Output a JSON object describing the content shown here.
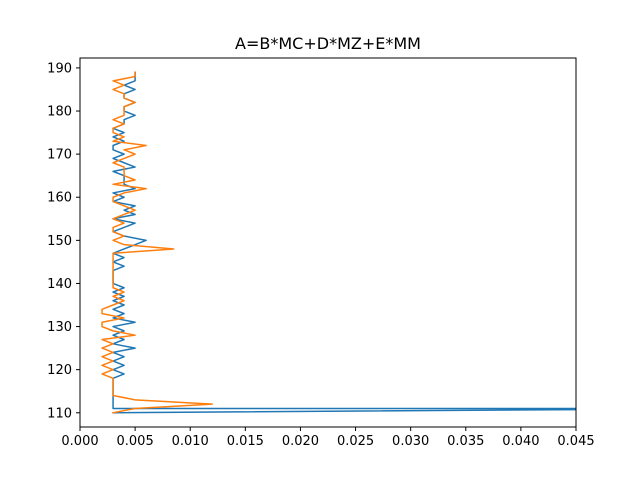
{
  "chart_data": {
    "type": "line",
    "title": "A=B*MC+D*MZ+E*MM",
    "xlabel": "",
    "ylabel": "",
    "xlim": [
      0,
      0.045
    ],
    "ylim": [
      106.7,
      192.3
    ],
    "grid": false,
    "legend": "none",
    "xticks": [
      0.0,
      0.005,
      0.01,
      0.015,
      0.02,
      0.025,
      0.03,
      0.035,
      0.04,
      0.045
    ],
    "xtick_labels": [
      "0.000",
      "0.005",
      "0.010",
      "0.015",
      "0.020",
      "0.025",
      "0.030",
      "0.035",
      "0.040",
      "0.045"
    ],
    "yticks": [
      110,
      120,
      130,
      140,
      150,
      160,
      170,
      180,
      190
    ],
    "ytick_labels": [
      "110",
      "120",
      "130",
      "140",
      "150",
      "160",
      "170",
      "180",
      "190"
    ],
    "series": [
      {
        "color": "#1f77b4",
        "points": [
          [
            0.003,
            110
          ],
          [
            0.06,
            111
          ],
          [
            0.003,
            111
          ],
          [
            0.003,
            118
          ],
          [
            0.004,
            119
          ],
          [
            0.003,
            120
          ],
          [
            0.004,
            121
          ],
          [
            0.003,
            122
          ],
          [
            0.004,
            123
          ],
          [
            0.003,
            124
          ],
          [
            0.005,
            125
          ],
          [
            0.003,
            126
          ],
          [
            0.004,
            127
          ],
          [
            0.003,
            128
          ],
          [
            0.004,
            129
          ],
          [
            0.003,
            130
          ],
          [
            0.005,
            131
          ],
          [
            0.003,
            132
          ],
          [
            0.004,
            133
          ],
          [
            0.003,
            134
          ],
          [
            0.004,
            135
          ],
          [
            0.003,
            136
          ],
          [
            0.004,
            137
          ],
          [
            0.003,
            138
          ],
          [
            0.004,
            139
          ],
          [
            0.003,
            140
          ],
          [
            0.003,
            141
          ],
          [
            0.003,
            142
          ],
          [
            0.003,
            143
          ],
          [
            0.004,
            144
          ],
          [
            0.003,
            145
          ],
          [
            0.004,
            146
          ],
          [
            0.003,
            147
          ],
          [
            0.004,
            148
          ],
          [
            0.005,
            149
          ],
          [
            0.006,
            150
          ],
          [
            0.004,
            151
          ],
          [
            0.003,
            152
          ],
          [
            0.004,
            153
          ],
          [
            0.005,
            154
          ],
          [
            0.003,
            155
          ],
          [
            0.005,
            156
          ],
          [
            0.004,
            157
          ],
          [
            0.005,
            158
          ],
          [
            0.003,
            159
          ],
          [
            0.004,
            160
          ],
          [
            0.003,
            161
          ],
          [
            0.005,
            162
          ],
          [
            0.004,
            163
          ],
          [
            0.004,
            164
          ],
          [
            0.004,
            165
          ],
          [
            0.003,
            166
          ],
          [
            0.005,
            167
          ],
          [
            0.004,
            168
          ],
          [
            0.003,
            169
          ],
          [
            0.004,
            170
          ],
          [
            0.003,
            171
          ],
          [
            0.003,
            172
          ],
          [
            0.004,
            173
          ],
          [
            0.003,
            174
          ],
          [
            0.004,
            175
          ],
          [
            0.003,
            176
          ],
          [
            0.004,
            177
          ],
          [
            0.004,
            178
          ],
          [
            0.005,
            179
          ],
          [
            0.004,
            180
          ],
          [
            0.004,
            181
          ],
          [
            0.005,
            182
          ],
          [
            0.004,
            183
          ],
          [
            0.004,
            184
          ],
          [
            0.005,
            185
          ],
          [
            0.004,
            186
          ],
          [
            0.005,
            187
          ],
          [
            0.005,
            188
          ],
          [
            0.005,
            189
          ]
        ]
      },
      {
        "color": "#ff7f0e",
        "points": [
          [
            0.003,
            110
          ],
          [
            0.005,
            111
          ],
          [
            0.012,
            112
          ],
          [
            0.005,
            113
          ],
          [
            0.003,
            114
          ],
          [
            0.003,
            118
          ],
          [
            0.002,
            119
          ],
          [
            0.003,
            120
          ],
          [
            0.002,
            121
          ],
          [
            0.003,
            122
          ],
          [
            0.002,
            123
          ],
          [
            0.003,
            124
          ],
          [
            0.002,
            125
          ],
          [
            0.003,
            126
          ],
          [
            0.002,
            127
          ],
          [
            0.005,
            128
          ],
          [
            0.003,
            129
          ],
          [
            0.002,
            130
          ],
          [
            0.002,
            131
          ],
          [
            0.004,
            132
          ],
          [
            0.002,
            133
          ],
          [
            0.002,
            134
          ],
          [
            0.003,
            135
          ],
          [
            0.004,
            136
          ],
          [
            0.003,
            137
          ],
          [
            0.004,
            138
          ],
          [
            0.003,
            139
          ],
          [
            0.003,
            140
          ],
          [
            0.003,
            141
          ],
          [
            0.003,
            142
          ],
          [
            0.003,
            143
          ],
          [
            0.003,
            144
          ],
          [
            0.003,
            145
          ],
          [
            0.003,
            146
          ],
          [
            0.003,
            147
          ],
          [
            0.0085,
            148
          ],
          [
            0.004,
            149
          ],
          [
            0.003,
            150
          ],
          [
            0.004,
            151
          ],
          [
            0.003,
            152
          ],
          [
            0.003,
            153
          ],
          [
            0.004,
            154
          ],
          [
            0.003,
            155
          ],
          [
            0.004,
            156
          ],
          [
            0.005,
            157
          ],
          [
            0.004,
            158
          ],
          [
            0.003,
            159
          ],
          [
            0.003,
            160
          ],
          [
            0.004,
            161
          ],
          [
            0.006,
            162
          ],
          [
            0.003,
            163
          ],
          [
            0.005,
            164
          ],
          [
            0.004,
            165
          ],
          [
            0.004,
            166
          ],
          [
            0.004,
            167
          ],
          [
            0.003,
            168
          ],
          [
            0.004,
            169
          ],
          [
            0.005,
            170
          ],
          [
            0.004,
            171
          ],
          [
            0.006,
            172
          ],
          [
            0.003,
            173
          ],
          [
            0.004,
            174
          ],
          [
            0.003,
            175
          ],
          [
            0.003,
            176
          ],
          [
            0.004,
            177
          ],
          [
            0.003,
            178
          ],
          [
            0.004,
            179
          ],
          [
            0.004,
            180
          ],
          [
            0.004,
            181
          ],
          [
            0.005,
            182
          ],
          [
            0.004,
            183
          ],
          [
            0.004,
            184
          ],
          [
            0.003,
            185
          ],
          [
            0.004,
            186
          ],
          [
            0.003,
            187
          ],
          [
            0.005,
            188
          ],
          [
            0.005,
            189
          ]
        ]
      }
    ]
  }
}
